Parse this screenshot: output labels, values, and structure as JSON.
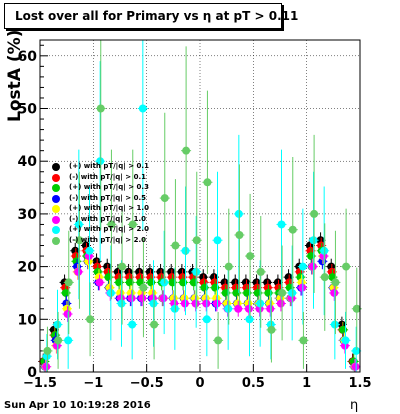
{
  "chart_data": {
    "type": "scatter",
    "title": "Lost over all for Primary vs   η at pT > 0.11",
    "xlabel": "η",
    "ylabel": "LostA (%)",
    "xlim": [
      -1.5,
      1.5
    ],
    "ylim": [
      0,
      63
    ],
    "xticks": [
      "−1.5",
      "−1",
      "−0.5",
      "0",
      "0.5",
      "1",
      "1.5"
    ],
    "yticks": [
      "0",
      "10",
      "20",
      "30",
      "40",
      "50",
      "60"
    ],
    "grid": true,
    "legend_position": "middle-left",
    "series": [
      {
        "name": "(+) with pT/|q| > 0.1",
        "color": "#000000",
        "x": [
          -1.45,
          -1.35,
          -1.25,
          -1.15,
          -1.05,
          -0.95,
          -0.85,
          -0.75,
          -0.65,
          -0.55,
          -0.45,
          -0.35,
          -0.25,
          -0.15,
          -0.05,
          0.05,
          0.15,
          0.25,
          0.35,
          0.45,
          0.55,
          0.65,
          0.75,
          0.85,
          0.95,
          1.05,
          1.15,
          1.25,
          1.35,
          1.45
        ],
        "y": [
          2,
          8,
          17,
          23,
          24,
          21,
          20,
          19,
          19,
          19,
          19,
          19,
          19,
          19,
          19,
          18,
          18,
          17,
          17,
          17,
          17,
          17,
          17,
          18,
          20,
          24,
          25,
          20,
          9,
          2
        ]
      },
      {
        "name": "(-) with pT/|q| > 0.1",
        "color": "#ff0000",
        "x": [
          -1.45,
          -1.35,
          -1.25,
          -1.15,
          -1.05,
          -0.95,
          -0.85,
          -0.75,
          -0.65,
          -0.55,
          -0.45,
          -0.35,
          -0.25,
          -0.15,
          -0.05,
          0.05,
          0.15,
          0.25,
          0.35,
          0.45,
          0.55,
          0.65,
          0.75,
          0.85,
          0.95,
          1.05,
          1.15,
          1.25,
          1.35,
          1.45
        ],
        "y": [
          2,
          7,
          16,
          22,
          23,
          20,
          19,
          18,
          18,
          18,
          18,
          18,
          18,
          18,
          18,
          17,
          17,
          16,
          16,
          16,
          16,
          16,
          16,
          17,
          19,
          23,
          24,
          19,
          8,
          2
        ]
      },
      {
        "name": "(+) with pT/|q| > 0.3",
        "color": "#00cc00",
        "x": [
          -1.45,
          -1.35,
          -1.25,
          -1.15,
          -1.05,
          -0.95,
          -0.85,
          -0.75,
          -0.65,
          -0.55,
          -0.45,
          -0.35,
          -0.25,
          -0.15,
          -0.05,
          0.05,
          0.15,
          0.25,
          0.35,
          0.45,
          0.55,
          0.65,
          0.75,
          0.85,
          0.95,
          1.05,
          1.15,
          1.25,
          1.35,
          1.45
        ],
        "y": [
          2,
          7,
          15,
          21,
          22,
          19,
          18,
          17,
          17,
          17,
          17,
          17,
          17,
          17,
          17,
          16,
          16,
          15,
          15,
          15,
          15,
          15,
          15,
          16,
          18,
          22,
          23,
          18,
          8,
          2
        ]
      },
      {
        "name": "(-) with pT/|q| > 0.5",
        "color": "#0000ff",
        "x": [
          -1.45,
          -1.35,
          -1.25,
          -1.15,
          -1.05,
          -0.95,
          -0.85,
          -0.75,
          -0.65,
          -0.55,
          -0.45,
          -0.35,
          -0.25,
          -0.15,
          -0.05,
          0.05,
          0.15,
          0.25,
          0.35,
          0.45,
          0.55,
          0.65,
          0.75,
          0.85,
          0.95,
          1.05,
          1.15,
          1.25,
          1.35,
          1.45
        ],
        "y": [
          1,
          6,
          13,
          20,
          21,
          17,
          16,
          14,
          14,
          14,
          14,
          14,
          14,
          14,
          14,
          14,
          13,
          13,
          13,
          13,
          13,
          13,
          14,
          14,
          16,
          20,
          21,
          16,
          6,
          1
        ]
      },
      {
        "name": "(+) with pT/|q| > 1.0",
        "color": "#ffff00",
        "x": [
          -1.45,
          -1.35,
          -1.25,
          -1.15,
          -1.05,
          -0.95,
          -0.85,
          -0.75,
          -0.65,
          -0.55,
          -0.45,
          -0.35,
          -0.25,
          -0.15,
          -0.05,
          0.05,
          0.15,
          0.25,
          0.35,
          0.45,
          0.55,
          0.65,
          0.75,
          0.85,
          0.95,
          1.05,
          1.15,
          1.25,
          1.35,
          1.45
        ],
        "y": [
          1,
          5,
          12,
          19,
          21,
          18,
          16,
          15,
          15,
          15,
          15,
          14,
          14,
          14,
          14,
          14,
          14,
          13,
          13,
          13,
          13,
          13,
          14,
          14,
          17,
          20,
          22,
          16,
          6,
          1
        ]
      },
      {
        "name": "(-) with pT/|q| > 1.0",
        "color": "#ff00ff",
        "x": [
          -1.45,
          -1.35,
          -1.25,
          -1.15,
          -1.05,
          -0.95,
          -0.85,
          -0.75,
          -0.65,
          -0.55,
          -0.45,
          -0.35,
          -0.25,
          -0.15,
          -0.05,
          0.05,
          0.15,
          0.25,
          0.35,
          0.45,
          0.55,
          0.65,
          0.75,
          0.85,
          0.95,
          1.05,
          1.15,
          1.25,
          1.35,
          1.45
        ],
        "y": [
          1,
          5,
          11,
          19,
          22,
          17,
          15,
          14,
          14,
          14,
          14,
          14,
          13,
          13,
          13,
          13,
          13,
          12,
          12,
          12,
          12,
          12,
          13,
          14,
          16,
          20,
          22,
          15,
          5,
          1
        ]
      },
      {
        "name": "(+) with pT/|q| > 2.0",
        "color": "#00ffff",
        "x": [
          -1.45,
          -1.35,
          -1.25,
          -1.15,
          -1.05,
          -0.95,
          -0.85,
          -0.75,
          -0.65,
          -0.55,
          -0.45,
          -0.35,
          -0.25,
          -0.15,
          -0.05,
          0.05,
          0.15,
          0.25,
          0.35,
          0.45,
          0.55,
          0.65,
          0.75,
          0.85,
          0.95,
          1.05,
          1.15,
          1.25,
          1.35,
          1.45
        ],
        "y": [
          3,
          9,
          6,
          28,
          23,
          40,
          15,
          13,
          9,
          50,
          13,
          17,
          12,
          23,
          19,
          10,
          25,
          12,
          30,
          10,
          13,
          9,
          28,
          15,
          20,
          25,
          23,
          9,
          6,
          4
        ]
      },
      {
        "name": "(-) with pT/|q| > 2.0",
        "color": "#66cc66",
        "x": [
          -1.45,
          -1.35,
          -1.25,
          -1.15,
          -1.05,
          -0.95,
          -0.85,
          -0.75,
          -0.65,
          -0.55,
          -0.45,
          -0.35,
          -0.25,
          -0.15,
          -0.05,
          0.05,
          0.15,
          0.25,
          0.35,
          0.45,
          0.55,
          0.65,
          0.75,
          0.85,
          0.95,
          1.05,
          1.15,
          1.25,
          1.35,
          1.45
        ],
        "y": [
          4,
          6,
          17,
          25,
          10,
          50,
          28,
          20,
          28,
          16,
          9,
          33,
          24,
          42,
          25,
          36,
          6,
          20,
          26,
          22,
          19,
          8,
          15,
          27,
          6,
          30,
          18,
          17,
          20,
          12
        ]
      }
    ]
  }
}
